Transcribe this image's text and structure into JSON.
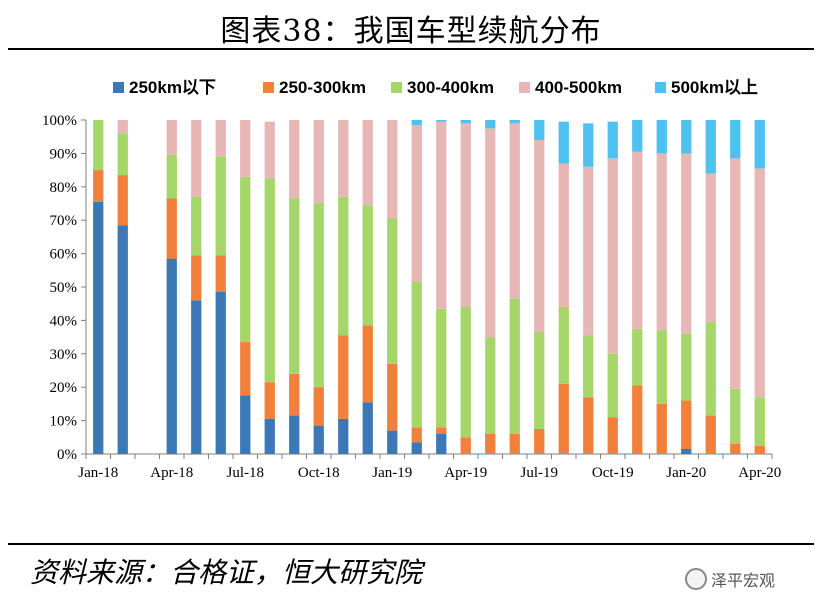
{
  "title": "图表38：我国车型续航分布",
  "source": "资料来源：合格证，恒大研究院",
  "watermark": "泽平宏观",
  "chart_data": {
    "type": "bar",
    "stacked": "percent",
    "x": [
      "Jan-18",
      "Feb-18",
      "Mar-18",
      "Apr-18",
      "May-18",
      "Jun-18",
      "Jul-18",
      "Aug-18",
      "Sep-18",
      "Oct-18",
      "Nov-18",
      "Dec-18",
      "Jan-19",
      "Feb-19",
      "Mar-19",
      "Apr-19",
      "May-19",
      "Jun-19",
      "Jul-19",
      "Aug-19",
      "Sep-19",
      "Oct-19",
      "Nov-19",
      "Dec-19",
      "Jan-20",
      "Feb-20",
      "Mar-20",
      "Apr-20"
    ],
    "x_tick_labels": [
      "Jan-18",
      "Apr-18",
      "Jul-18",
      "Oct-18",
      "Jan-19",
      "Apr-19",
      "Jul-19",
      "Oct-19",
      "Jan-20",
      "Apr-20"
    ],
    "y_tick_labels": [
      "0%",
      "10%",
      "20%",
      "30%",
      "40%",
      "50%",
      "60%",
      "70%",
      "80%",
      "90%",
      "100%"
    ],
    "ylim": [
      0,
      100
    ],
    "legend_position": "top",
    "grid": false,
    "series": [
      {
        "name": "250km以下",
        "color": "#3d78b6",
        "values": [
          75.5,
          68.5,
          0,
          58.5,
          46,
          48.5,
          17.5,
          10.5,
          11.5,
          8.5,
          10.5,
          15.5,
          7,
          3.5,
          6,
          0,
          0,
          0,
          0,
          0,
          0,
          0,
          0,
          0,
          1.5,
          0,
          0,
          0
        ]
      },
      {
        "name": "250-300km",
        "color": "#f0803a",
        "values": [
          9.5,
          15,
          0,
          18,
          13.5,
          11,
          16,
          11,
          12.5,
          11.5,
          25,
          23,
          20,
          4.5,
          2,
          5,
          6,
          6,
          7.5,
          21,
          17,
          11,
          20.5,
          15,
          14.5,
          11.5,
          3,
          2.5
        ]
      },
      {
        "name": "300-400km",
        "color": "#a5d66a",
        "values": [
          15,
          12.5,
          0,
          13,
          17.5,
          29.5,
          49.5,
          61,
          52.5,
          55,
          41.5,
          36,
          43.5,
          43.5,
          35.5,
          39,
          29,
          40.5,
          29,
          23,
          18.5,
          19,
          17,
          22,
          20,
          28,
          16.5,
          14.5
        ]
      },
      {
        "name": "400-500km",
        "color": "#e7b7b5",
        "values": [
          0,
          4,
          0,
          10.5,
          23,
          11,
          17,
          17,
          23.5,
          25,
          23,
          25.5,
          29.5,
          47,
          56,
          55,
          62.5,
          52.5,
          57.5,
          43,
          50.5,
          58.5,
          53,
          53,
          54,
          44.5,
          69,
          68.5
        ]
      },
      {
        "name": "500km以上",
        "color": "#4ec1f0",
        "values": [
          0,
          0,
          0,
          0,
          0,
          0,
          0,
          0,
          0,
          0,
          0,
          0,
          0,
          1.5,
          0.5,
          1,
          2.5,
          1,
          6,
          12.5,
          13,
          11,
          9.5,
          10,
          10,
          16,
          11.5,
          14.5
        ]
      }
    ]
  }
}
